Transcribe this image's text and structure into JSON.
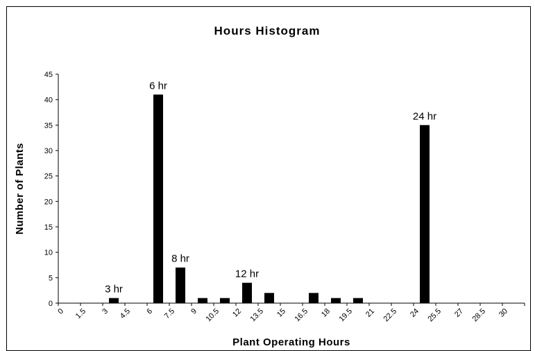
{
  "chart_data": {
    "type": "bar",
    "title": "Hours Histogram",
    "x_label": "Plant Operating Hours",
    "y_label": "Number of Plants",
    "categories": [
      "0",
      "1.5",
      "3",
      "4.5",
      "6",
      "7.5",
      "9",
      "10.5",
      "12",
      "13.5",
      "15",
      "16.5",
      "18",
      "19.5",
      "21",
      "22.5",
      "24",
      "25.5",
      "27",
      "28.5",
      "30"
    ],
    "values": [
      0,
      0,
      1,
      0,
      41,
      7,
      1,
      1,
      4,
      2,
      0,
      2,
      1,
      1,
      0,
      0,
      35,
      0,
      0,
      0,
      0
    ],
    "color": "#000000",
    "ylim": [
      0,
      45
    ],
    "yticks": [
      0,
      5,
      10,
      15,
      20,
      25,
      30,
      35,
      40,
      45
    ],
    "grid": false,
    "annotations": [
      {
        "label": "3 hr",
        "at": "3"
      },
      {
        "label": "6 hr",
        "at": "6"
      },
      {
        "label": "8 hr",
        "at": "7.5"
      },
      {
        "label": "12 hr",
        "at": "12"
      },
      {
        "label": "24 hr",
        "at": "24"
      }
    ]
  }
}
